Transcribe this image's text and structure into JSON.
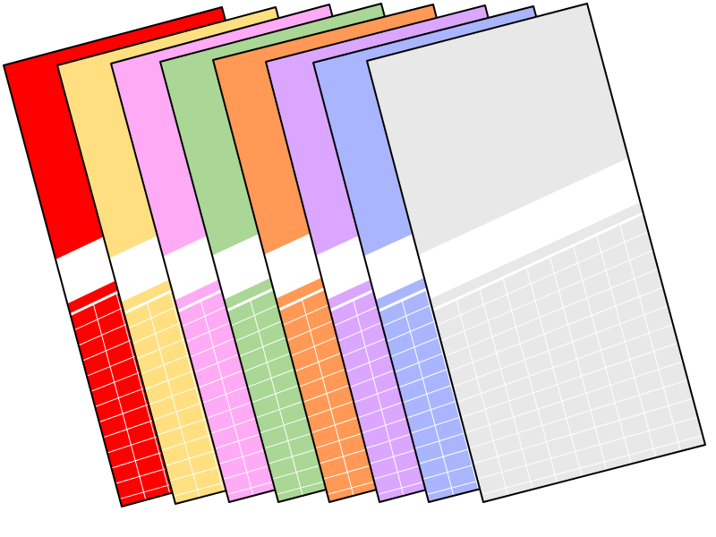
{
  "illustration": {
    "subject": "fanned-stack-of-colored-sheets",
    "sheets": [
      {
        "name": "red-sheet",
        "color": "#ff0000"
      },
      {
        "name": "yellow-sheet",
        "color": "#ffdf80"
      },
      {
        "name": "pink-sheet",
        "color": "#ffaaf5"
      },
      {
        "name": "green-sheet",
        "color": "#aad795"
      },
      {
        "name": "orange-sheet",
        "color": "#ff9955"
      },
      {
        "name": "purple-sheet",
        "color": "#dba6ff"
      },
      {
        "name": "blue-sheet",
        "color": "#aab5ff"
      },
      {
        "name": "grey-sheet",
        "color": "#e8e8e8"
      }
    ],
    "colors": {
      "outline": "#000000",
      "band": "#ffffff",
      "grid": "#ffffff"
    }
  }
}
